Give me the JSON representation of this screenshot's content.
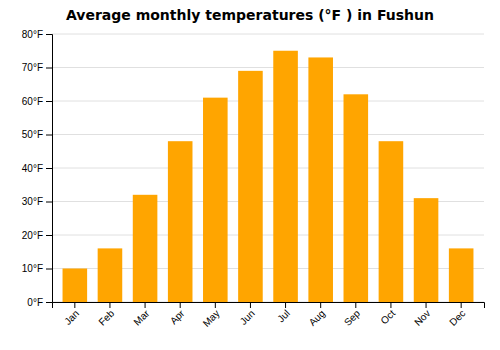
{
  "chart_data": {
    "type": "bar",
    "title": "Average monthly temperatures (°F ) in Fushun",
    "categories": [
      "Jan",
      "Feb",
      "Mar",
      "Apr",
      "May",
      "Jun",
      "Jul",
      "Aug",
      "Sep",
      "Oct",
      "Nov",
      "Dec"
    ],
    "values": [
      10,
      16,
      32,
      48,
      61,
      69,
      75,
      73,
      62,
      48,
      31,
      16
    ],
    "color": "#FFA500",
    "ylim": [
      0,
      80
    ],
    "yticks": [
      {
        "value": 0,
        "label": "0°F"
      },
      {
        "value": 10,
        "label": "10°F"
      },
      {
        "value": 20,
        "label": "20°F"
      },
      {
        "value": 30,
        "label": "30°F"
      },
      {
        "value": 40,
        "label": "40°F"
      },
      {
        "value": 50,
        "label": "50°F"
      },
      {
        "value": 60,
        "label": "60°F"
      },
      {
        "value": 70,
        "label": "70°F"
      },
      {
        "value": 80,
        "label": "80°F"
      }
    ],
    "grid": true
  }
}
